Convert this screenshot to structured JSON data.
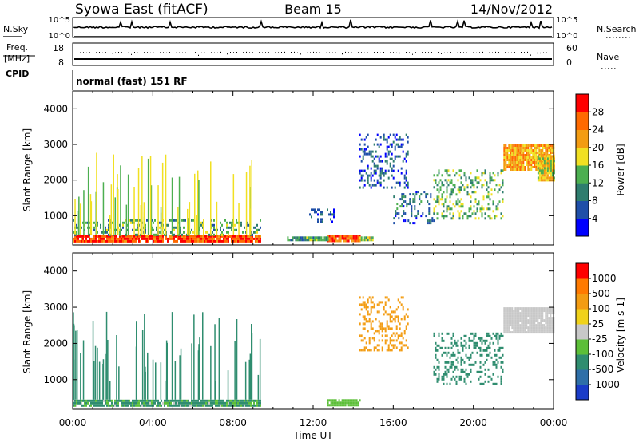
{
  "header": {
    "title": "Syowa East (fitACF)",
    "beam": "Beam 15",
    "date": "14/Nov/2012"
  },
  "noise_panel": {
    "left_label": "N.Sky",
    "right_label": "N.Search",
    "left_ticks": [
      "10^5",
      "10^0"
    ],
    "right_ticks": [
      "10^5",
      "10^0"
    ]
  },
  "freq_panel": {
    "left_label": "Freq.",
    "left_unit": "[MHz]",
    "left_ticks": [
      "18",
      "8"
    ],
    "right_label": "Nave",
    "right_ticks": [
      "60",
      "0"
    ],
    "cpid_label": "CPID"
  },
  "cpid_text": "normal (fast) 151 RF",
  "x_axis": {
    "label": "Time UT",
    "ticks": [
      "00:00",
      "04:00",
      "08:00",
      "12:00",
      "16:00",
      "20:00",
      "00:00"
    ]
  },
  "power_colorbar": {
    "label": "Power [dB]",
    "ticks": [
      "28",
      "24",
      "20",
      "16",
      "12",
      "8",
      "4"
    ],
    "colors": [
      "#0000ff",
      "#1f4fa8",
      "#2e7d6e",
      "#4caf50",
      "#f1e022",
      "#f39c12",
      "#ff6a00",
      "#ff0000"
    ]
  },
  "velocity_colorbar": {
    "label": "Velocity [m s-1]",
    "ticks": [
      "1000",
      "500",
      "100",
      "25",
      "-25",
      "-100",
      "-500",
      "-1000"
    ],
    "colors": [
      "#1a3cc8",
      "#2e6fa8",
      "#2f8d6f",
      "#5cbf38",
      "#c8c8c8",
      "#f0d21a",
      "#f39c12",
      "#ff7a00",
      "#ff0000"
    ]
  },
  "chart_data": [
    {
      "type": "heatmap",
      "title": "",
      "xlabel": "Time UT",
      "ylabel": "Slant Range [km]",
      "xlim": [
        0,
        24
      ],
      "ylim": [
        180,
        4500
      ],
      "yticks": [
        1000,
        2000,
        3000,
        4000
      ],
      "colorbar_label": "Power [dB]",
      "regions": [
        {
          "t": [
            0.0,
            9.4
          ],
          "r": [
            300,
            450
          ],
          "value": 28
        },
        {
          "t": [
            12.7,
            14.3
          ],
          "r": [
            290,
            460
          ],
          "value": 27
        },
        {
          "t": [
            14.3,
            15.0
          ],
          "r": [
            320,
            420
          ],
          "value": 16
        },
        {
          "t": [
            10.7,
            12.7
          ],
          "r": [
            330,
            420
          ],
          "value": 12
        },
        {
          "t": [
            0.0,
            9.4
          ],
          "r": [
            450,
            900
          ],
          "value": 12,
          "sparse": true
        },
        {
          "t": [
            11.8,
            13.0
          ],
          "r": [
            800,
            1200
          ],
          "value": 6,
          "sparse": true
        },
        {
          "t": [
            14.3,
            16.7
          ],
          "r": [
            1800,
            3300
          ],
          "value": 7,
          "sparse": true
        },
        {
          "t": [
            16.0,
            18.0
          ],
          "r": [
            800,
            1700
          ],
          "value": 8,
          "sparse": true
        },
        {
          "t": [
            18.0,
            21.5
          ],
          "r": [
            900,
            2300
          ],
          "value": 14,
          "sparse": true
        },
        {
          "t": [
            21.5,
            24.0
          ],
          "r": [
            2300,
            3000
          ],
          "value": 22
        },
        {
          "t": [
            23.2,
            24.0
          ],
          "r": [
            2000,
            2700
          ],
          "value": 18
        }
      ]
    },
    {
      "type": "heatmap",
      "title": "",
      "xlabel": "Time UT",
      "ylabel": "Slant Range [km]",
      "xlim": [
        0,
        24
      ],
      "ylim": [
        180,
        4500
      ],
      "yticks": [
        1000,
        2000,
        3000,
        4000
      ],
      "colorbar_label": "Velocity [m s-1]",
      "regions": [
        {
          "t": [
            0.0,
            9.4
          ],
          "r": [
            290,
            450
          ],
          "value": -150
        },
        {
          "t": [
            12.7,
            14.3
          ],
          "r": [
            290,
            460
          ],
          "value": -40
        },
        {
          "t": [
            14.3,
            16.7
          ],
          "r": [
            1800,
            3300
          ],
          "value": 300,
          "sparse": true
        },
        {
          "t": [
            18.0,
            21.5
          ],
          "r": [
            900,
            2300
          ],
          "value": -300,
          "sparse": true
        },
        {
          "t": [
            21.5,
            24.0
          ],
          "r": [
            2300,
            3000
          ],
          "value": 10
        }
      ]
    }
  ]
}
